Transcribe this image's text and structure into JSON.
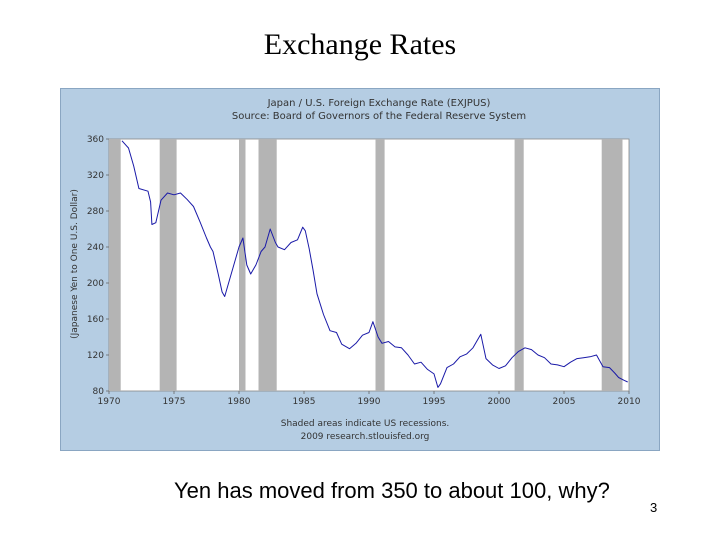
{
  "slide": {
    "title": "Exchange Rates",
    "caption": "Yen has moved from 350 to about 100, why?",
    "page_number": "3"
  },
  "chart_data": {
    "type": "line",
    "title": "Japan / U.S. Foreign Exchange Rate (EXJPUS)",
    "subtitle": "Source: Board of Governors of the Federal Reserve System",
    "ylabel": "(Japanese Yen to One U.S. Dollar)",
    "xlabel": "",
    "xlim": [
      1970,
      2010
    ],
    "ylim": [
      80,
      360
    ],
    "xticks": [
      1970,
      1975,
      1980,
      1985,
      1990,
      1995,
      2000,
      2005,
      2010
    ],
    "yticks": [
      80,
      120,
      160,
      200,
      240,
      280,
      320,
      360
    ],
    "recessions": [
      [
        1969.9,
        1970.9
      ],
      [
        1973.9,
        1975.2
      ],
      [
        1980.0,
        1980.5
      ],
      [
        1981.5,
        1982.9
      ],
      [
        1990.5,
        1991.2
      ],
      [
        2001.2,
        2001.9
      ],
      [
        2007.9,
        2009.5
      ]
    ],
    "footnote_1": "Shaded areas indicate US recessions.",
    "footnote_2": "2009 research.stlouisfed.org",
    "colors": {
      "line": "#1a1aa8",
      "recession": "#b4b4b4",
      "plot_bg": "#ffffff",
      "frame_bg": "#b5cde3"
    },
    "series": [
      {
        "x": [
          1971.0,
          1971.5,
          1971.9,
          1972.3,
          1973.0,
          1973.2,
          1973.3,
          1973.6,
          1974.0,
          1974.5,
          1975.0,
          1975.5,
          1976.0,
          1976.5,
          1977.0,
          1977.5,
          1977.8,
          1978.0,
          1978.4,
          1978.7,
          1978.9,
          1979.3,
          1979.7,
          1980.0,
          1980.3,
          1980.6,
          1980.9,
          1981.3,
          1981.7,
          1982.0,
          1982.4,
          1982.8,
          1983.0,
          1983.5,
          1984.0,
          1984.5,
          1984.9,
          1985.1,
          1985.4,
          1985.7,
          1986.0,
          1986.5,
          1987.0,
          1987.5,
          1987.9,
          1988.5,
          1989.0,
          1989.5,
          1990.0,
          1990.3,
          1990.7,
          1991.0,
          1991.5,
          1992.0,
          1992.5,
          1993.0,
          1993.5,
          1994.0,
          1994.5,
          1995.0,
          1995.3,
          1995.5,
          1996.0,
          1996.5,
          1997.0,
          1997.5,
          1998.0,
          1998.6,
          1999.0,
          1999.5,
          2000.0,
          2000.5,
          2001.0,
          2001.5,
          2002.0,
          2002.5,
          2003.0,
          2003.5,
          2004.0,
          2004.5,
          2005.0,
          2005.5,
          2006.0,
          2006.5,
          2007.0,
          2007.5,
          2008.0,
          2008.5,
          2008.9,
          2009.2,
          2009.6,
          2009.9
        ],
        "values": [
          358,
          350,
          330,
          305,
          302,
          290,
          265,
          267,
          292,
          300,
          298,
          300,
          293,
          285,
          268,
          250,
          240,
          235,
          210,
          190,
          185,
          205,
          225,
          240,
          250,
          220,
          210,
          220,
          235,
          240,
          260,
          245,
          240,
          237,
          245,
          248,
          262,
          258,
          238,
          214,
          188,
          165,
          147,
          145,
          132,
          127,
          133,
          142,
          145,
          157,
          140,
          133,
          135,
          129,
          128,
          120,
          110,
          112,
          104,
          99,
          84,
          88,
          106,
          110,
          118,
          121,
          128,
          143,
          116,
          109,
          105,
          108,
          117,
          124,
          128,
          126,
          120,
          117,
          110,
          109,
          107,
          112,
          116,
          117,
          118,
          120,
          107,
          106,
          100,
          95,
          92,
          90
        ]
      }
    ]
  }
}
